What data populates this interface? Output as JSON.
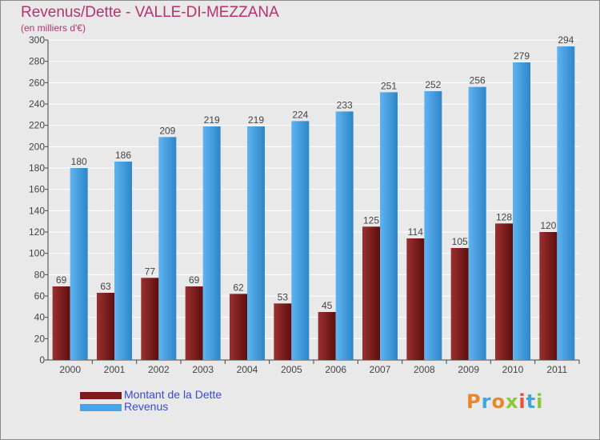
{
  "title": "Revenus/Dette - VALLE-DI-MEZZANA",
  "subtitle": "(en milliers d'€)",
  "logo": {
    "text": "Proxiti",
    "colors": [
      "#e8872a",
      "#3ea6df",
      "#e8872a",
      "#8cc63f",
      "#e84f3d",
      "#3ea6df",
      "#8cc63f"
    ]
  },
  "colors": {
    "dette": "#7a1c1c",
    "revenus": "#4aa3e8",
    "title": "#b5336b",
    "legend_text": "#3a4bd6"
  },
  "chart_data": {
    "type": "bar",
    "title": "Revenus/Dette - VALLE-DI-MEZZANA",
    "ylabel": "(en milliers d'€)",
    "categories": [
      "2000",
      "2001",
      "2002",
      "2003",
      "2004",
      "2005",
      "2006",
      "2007",
      "2008",
      "2009",
      "2010",
      "2011"
    ],
    "series": [
      {
        "name": "Montant de la Dette",
        "values": [
          69,
          63,
          77,
          69,
          62,
          53,
          45,
          125,
          114,
          105,
          128,
          120
        ]
      },
      {
        "name": "Revenus",
        "values": [
          180,
          186,
          209,
          219,
          219,
          224,
          233,
          251,
          252,
          256,
          279,
          294
        ]
      }
    ],
    "ylim": [
      0,
      300
    ],
    "yticks": [
      0,
      20,
      40,
      60,
      80,
      100,
      120,
      140,
      160,
      180,
      200,
      220,
      240,
      260,
      280,
      300
    ],
    "grid": true,
    "legend": "bottom-left"
  }
}
